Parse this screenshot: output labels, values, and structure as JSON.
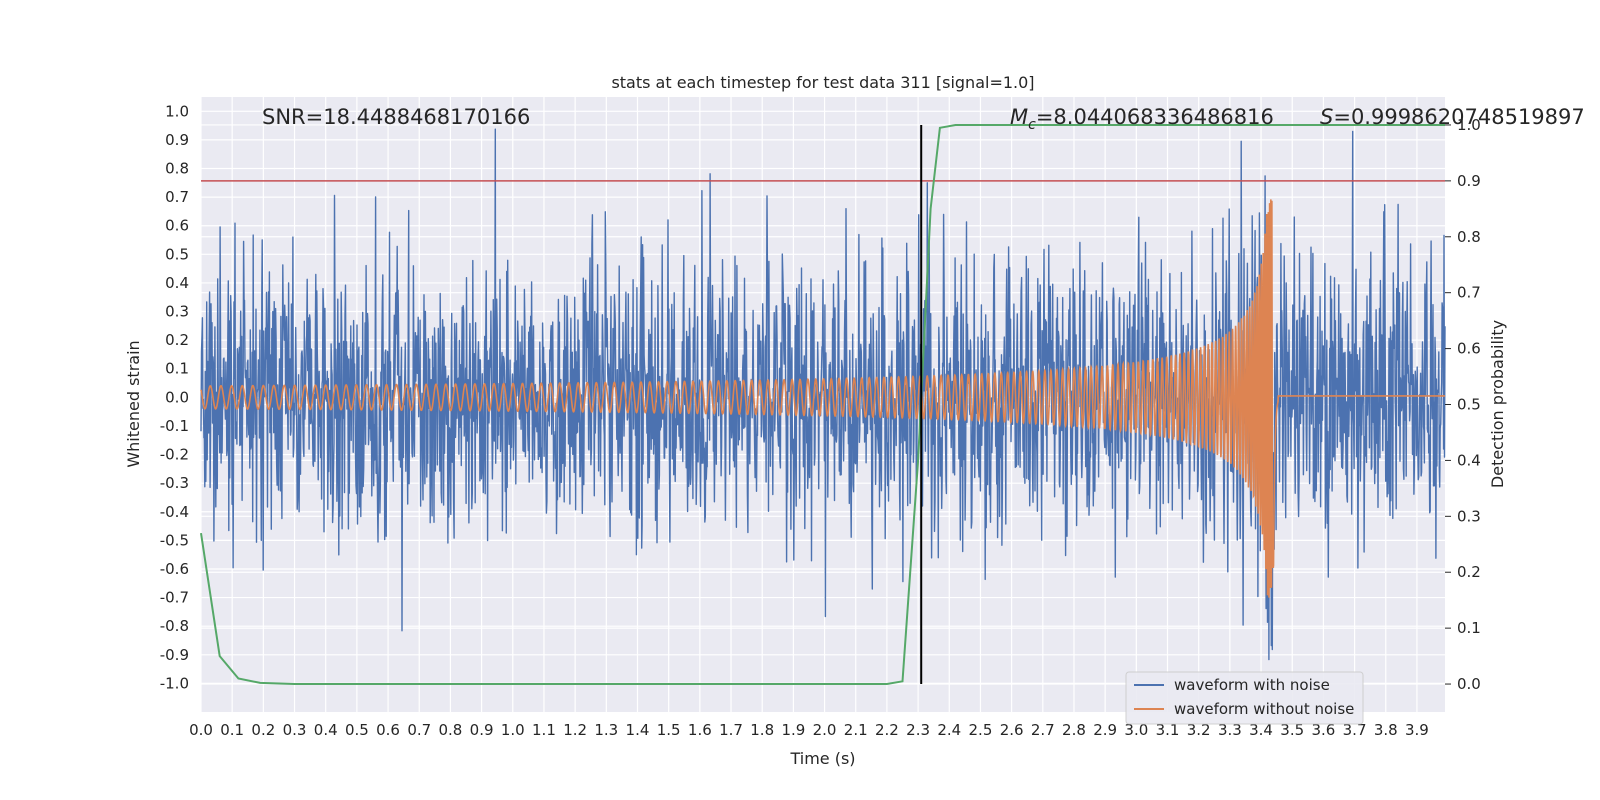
{
  "chart_data": {
    "type": "line",
    "title": "stats at each timestep for test data 311 [signal=1.0]",
    "xlabel": "Time (s)",
    "ylabel": "Whitened strain",
    "y2label": "Detection probability",
    "xlim": [
      0.0,
      3.99
    ],
    "ylim": [
      -1.1,
      1.05
    ],
    "y2lim": [
      -0.05,
      1.05
    ],
    "x_ticks": [
      "0.0",
      "0.1",
      "0.2",
      "0.3",
      "0.4",
      "0.5",
      "0.6",
      "0.7",
      "0.8",
      "0.9",
      "1.0",
      "1.1",
      "1.2",
      "1.3",
      "1.4",
      "1.5",
      "1.6",
      "1.7",
      "1.8",
      "1.9",
      "2.0",
      "2.1",
      "2.2",
      "2.3",
      "2.4",
      "2.5",
      "2.6",
      "2.7",
      "2.8",
      "2.9",
      "3.0",
      "3.1",
      "3.2",
      "3.3",
      "3.4",
      "3.5",
      "3.6",
      "3.7",
      "3.8",
      "3.9"
    ],
    "y_ticks": [
      "1.0",
      "0.9",
      "0.8",
      "0.7",
      "0.6",
      "0.5",
      "0.4",
      "0.3",
      "0.2",
      "0.1",
      "0.0",
      "-0.1",
      "-0.2",
      "-0.3",
      "-0.4",
      "-0.5",
      "-0.6",
      "-0.7",
      "-0.8",
      "-0.9",
      "-1.0"
    ],
    "y2_ticks": [
      "1.0",
      "0.9",
      "0.8",
      "0.7",
      "0.6",
      "0.5",
      "0.4",
      "0.3",
      "0.2",
      "0.1",
      "0.0"
    ],
    "series": [
      {
        "name": "waveform with noise",
        "color": "#4c72b0",
        "axis": "left",
        "description": "noisy whitened strain, amplitude ~0.5"
      },
      {
        "name": "waveform without noise",
        "color": "#dd8452",
        "axis": "left",
        "chirp_peak_time": 3.44,
        "chirp_peak_amp": 0.7,
        "initial_amp": 0.04
      },
      {
        "name": "detection probability",
        "color": "#55a868",
        "axis": "right",
        "x": [
          0.0,
          0.06,
          0.12,
          0.19,
          0.3,
          0.5,
          1.0,
          1.5,
          2.0,
          2.2,
          2.25,
          2.3,
          2.34,
          2.37,
          2.42,
          2.6,
          3.0,
          3.5,
          3.99
        ],
        "y": [
          0.27,
          0.05,
          0.01,
          0.002,
          0.0,
          0.0,
          0.0,
          0.0,
          0.0,
          0.0,
          0.005,
          0.4,
          0.85,
          0.995,
          1.0,
          1.0,
          1.0,
          1.0,
          1.0
        ]
      }
    ],
    "threshold_line": {
      "y2": 0.9,
      "color": "#c44e52"
    },
    "vertical_marker": {
      "x": 2.31,
      "color": "#000000"
    },
    "annotations": {
      "snr": "SNR=18.4488468170166",
      "mc_symbol": "M",
      "mc_sub": "c",
      "mc_value": "=8.044068336486816",
      "s_symbol": "S",
      "s_value": "=0.9998620748519897"
    },
    "legend": {
      "placement": "bottom-right",
      "entries": [
        "waveform with noise",
        "waveform without noise"
      ]
    }
  }
}
